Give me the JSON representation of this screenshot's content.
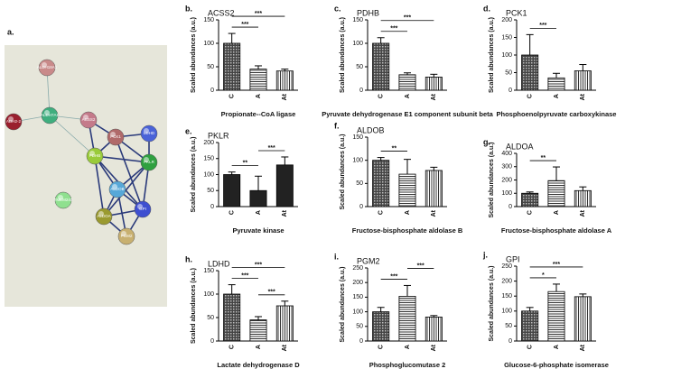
{
  "network": {
    "label": "a.",
    "nodes": [
      "ALDH18A1",
      "ALDH7A1",
      "ADH2-2",
      "ACSS2",
      "PCK1",
      "LDHD",
      "PDHB",
      "PKLR",
      "ALDOB",
      "TMEM240",
      "GPI",
      "ALDOA",
      "PGM2"
    ]
  },
  "chart_data": [
    {
      "type": "bar",
      "label": "b.",
      "title": "ACSS2",
      "xlabel": "Propionate--CoA ligase",
      "ylabel": "Scaled abundances (a.u.)",
      "categories": [
        "C",
        "A",
        "At"
      ],
      "values": [
        100,
        45,
        41
      ],
      "errors": [
        21,
        7,
        4
      ],
      "ylim": [
        0,
        150
      ],
      "yticks": [
        0,
        50,
        100,
        150
      ],
      "bar_fill": "patterned",
      "significance": [
        {
          "from": 0,
          "to": 1,
          "label": "***"
        },
        {
          "from": 0,
          "to": 2,
          "label": "***"
        }
      ]
    },
    {
      "type": "bar",
      "label": "c.",
      "title": "PDHB",
      "xlabel": "Pyruvate dehydrogenase E1 component subunit beta",
      "ylabel": "Scaled abundances (a.u.)",
      "categories": [
        "C",
        "A",
        "At"
      ],
      "values": [
        100,
        33,
        28
      ],
      "errors": [
        12,
        4,
        6
      ],
      "ylim": [
        0,
        150
      ],
      "yticks": [
        0,
        50,
        100,
        150
      ],
      "bar_fill": "patterned",
      "significance": [
        {
          "from": 0,
          "to": 1,
          "label": "***"
        },
        {
          "from": 0,
          "to": 2,
          "label": "***"
        }
      ]
    },
    {
      "type": "bar",
      "label": "d.",
      "title": "PCK1",
      "xlabel": "Phosphoenolpyruvate carboxykinase",
      "ylabel": "Scaled abundances (a.u.)",
      "categories": [
        "C",
        "A",
        "At"
      ],
      "values": [
        100,
        35,
        55
      ],
      "errors": [
        58,
        13,
        18
      ],
      "ylim": [
        0,
        200
      ],
      "yticks": [
        0,
        50,
        100,
        150,
        200
      ],
      "bar_fill": "patterned",
      "significance": [
        {
          "from": 0,
          "to": 1,
          "label": "***"
        }
      ]
    },
    {
      "type": "bar",
      "label": "e.",
      "title": "PKLR",
      "xlabel": "Pyruvate kinase",
      "ylabel": "Scaled abundances (a.u.)",
      "categories": [
        "C",
        "A",
        "At"
      ],
      "values": [
        100,
        50,
        130
      ],
      "errors": [
        8,
        45,
        25
      ],
      "ylim": [
        0,
        200
      ],
      "yticks": [
        0,
        50,
        100,
        150,
        200
      ],
      "bar_fill": "solid",
      "significance": [
        {
          "from": 0,
          "to": 1,
          "label": "**"
        },
        {
          "from": 1,
          "to": 2,
          "label": "***"
        }
      ]
    },
    {
      "type": "bar",
      "label": "f.",
      "title": "ALDOB",
      "xlabel": "Fructose-bisphosphate aldolase B",
      "ylabel": "Scaled abundances (a.u.)",
      "categories": [
        "C",
        "A",
        "At"
      ],
      "values": [
        100,
        70,
        78
      ],
      "errors": [
        6,
        32,
        7
      ],
      "ylim": [
        0,
        150
      ],
      "yticks": [
        0,
        50,
        100,
        150
      ],
      "bar_fill": "patterned",
      "significance": [
        {
          "from": 0,
          "to": 1,
          "label": "**"
        }
      ]
    },
    {
      "type": "bar",
      "label": "g.",
      "title": "ALDOA",
      "xlabel": "Fructose-bisphosphate aldolase A",
      "ylabel": "Scaled abundances (a.u.)",
      "categories": [
        "C",
        "A",
        "At"
      ],
      "values": [
        100,
        195,
        120
      ],
      "errors": [
        10,
        103,
        28
      ],
      "ylim": [
        0,
        400
      ],
      "yticks": [
        0,
        100,
        200,
        300,
        400
      ],
      "bar_fill": "patterned",
      "significance": [
        {
          "from": 0,
          "to": 1,
          "label": "**"
        }
      ]
    },
    {
      "type": "bar",
      "label": "h.",
      "title": "LDHD",
      "xlabel": "Lactate dehydrogenase D",
      "ylabel": "Scaled abundances (a.u.)",
      "categories": [
        "C",
        "A",
        "At"
      ],
      "values": [
        100,
        45,
        75
      ],
      "errors": [
        20,
        7,
        10
      ],
      "ylim": [
        0,
        150
      ],
      "yticks": [
        0,
        50,
        100,
        150
      ],
      "bar_fill": "patterned",
      "significance": [
        {
          "from": 1,
          "to": 2,
          "label": "***"
        },
        {
          "from": 0,
          "to": 1,
          "label": "***"
        },
        {
          "from": 0,
          "to": 2,
          "label": "***"
        }
      ]
    },
    {
      "type": "bar",
      "label": "i.",
      "title": "PGM2",
      "xlabel": "Phosphoglucomutase 2",
      "ylabel": "Scaled abundances (a.u.)",
      "categories": [
        "C",
        "A",
        "At"
      ],
      "values": [
        100,
        153,
        82
      ],
      "errors": [
        15,
        37,
        5
      ],
      "ylim": [
        0,
        250
      ],
      "yticks": [
        0,
        50,
        100,
        150,
        200,
        250
      ],
      "bar_fill": "patterned",
      "significance": [
        {
          "from": 0,
          "to": 1,
          "label": "***"
        },
        {
          "from": 1,
          "to": 2,
          "label": "***"
        }
      ]
    },
    {
      "type": "bar",
      "label": "j.",
      "title": "GPI",
      "xlabel": "Glucose-6-phosphate isomerase",
      "ylabel": "Scaled abundances (a.u.)",
      "categories": [
        "C",
        "A",
        "At"
      ],
      "values": [
        100,
        165,
        148
      ],
      "errors": [
        12,
        25,
        9
      ],
      "ylim": [
        0,
        250
      ],
      "yticks": [
        0,
        50,
        100,
        150,
        200,
        250
      ],
      "bar_fill": "patterned",
      "significance": [
        {
          "from": 0,
          "to": 1,
          "label": "*"
        },
        {
          "from": 0,
          "to": 2,
          "label": "***"
        }
      ]
    }
  ]
}
